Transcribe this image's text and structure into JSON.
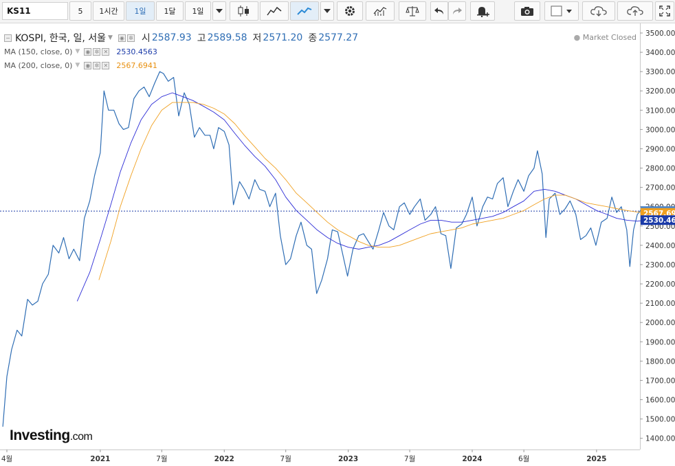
{
  "toolbar": {
    "symbol": "KS11",
    "interval_value": "5",
    "interval_buttons": [
      "1시간",
      "1일",
      "1달",
      "1일"
    ],
    "active_interval": "1일"
  },
  "legend": {
    "title": "KOSPI, 한국, 일, 서울",
    "open_label": "시",
    "open": "2587.93",
    "high_label": "고",
    "high": "2589.58",
    "low_label": "저",
    "low": "2571.20",
    "close_label": "종",
    "close": "2577.27",
    "ma150_label": "MA (150, close, 0)",
    "ma150_value": "2530.4563",
    "ma200_label": "MA (200, close, 0)",
    "ma200_value": "2567.6941"
  },
  "market_status": "Market Closed",
  "logo": {
    "main": "Investing",
    "suffix": ".com"
  },
  "colors": {
    "price": "#2e6db4",
    "ma150": "#2b2bd6",
    "ma200": "#f0a020",
    "label_price": "#4f87c9",
    "label_ma200": "#f0a020",
    "label_ma150": "#1a3aa8",
    "toolbar_bg": "#f4f4f4"
  },
  "icons": [
    "candlestick-icon",
    "area-chart-icon",
    "line-chart-icon",
    "gear-icon",
    "indicators-icon",
    "compare-icon",
    "undo-icon",
    "redo-icon",
    "alert-icon",
    "camera-icon",
    "layout-icon",
    "cloud-download-icon",
    "cloud-upload-icon",
    "fullscreen-icon"
  ],
  "chart_data": {
    "type": "line",
    "title": "KOSPI, 한국, 일, 서울",
    "xlabel": "",
    "ylabel": "",
    "ylim": [
      1350,
      3550
    ],
    "yticks": [
      "3500.00",
      "3400.00",
      "3300.00",
      "3200.00",
      "3100.00",
      "3000.00",
      "2900.00",
      "2800.00",
      "2700.00",
      "2600.00",
      "2500.00",
      "2400.00",
      "2300.00",
      "2200.00",
      "2100.00",
      "2000.00",
      "1900.00",
      "1800.00",
      "1700.00",
      "1600.00",
      "1500.00",
      "1400.00"
    ],
    "xticks": [
      {
        "label": "4월",
        "date": "2020-04"
      },
      {
        "label": "2021",
        "date": "2021-01"
      },
      {
        "label": "7월",
        "date": "2021-07"
      },
      {
        "label": "2022",
        "date": "2022-01"
      },
      {
        "label": "7월",
        "date": "2022-07"
      },
      {
        "label": "2023",
        "date": "2023-01"
      },
      {
        "label": "7월",
        "date": "2023-07"
      },
      {
        "label": "2024",
        "date": "2024-01"
      },
      {
        "label": "6월",
        "date": "2024-06"
      },
      {
        "label": "2025",
        "date": "2025-01"
      }
    ],
    "last_labels": {
      "price": "2577.27",
      "ma200": "2567.69",
      "ma150": "2530.46"
    },
    "series": [
      {
        "name": "KOSPI",
        "values": [
          [
            "2020-03-20",
            1460
          ],
          [
            "2020-04-01",
            1720
          ],
          [
            "2020-04-15",
            1860
          ],
          [
            "2020-05-01",
            1960
          ],
          [
            "2020-05-15",
            1930
          ],
          [
            "2020-06-01",
            2120
          ],
          [
            "2020-06-15",
            2090
          ],
          [
            "2020-07-01",
            2110
          ],
          [
            "2020-07-15",
            2200
          ],
          [
            "2020-08-01",
            2250
          ],
          [
            "2020-08-15",
            2400
          ],
          [
            "2020-09-01",
            2360
          ],
          [
            "2020-09-15",
            2440
          ],
          [
            "2020-10-01",
            2330
          ],
          [
            "2020-10-15",
            2380
          ],
          [
            "2020-11-01",
            2320
          ],
          [
            "2020-11-15",
            2540
          ],
          [
            "2020-12-01",
            2630
          ],
          [
            "2020-12-15",
            2760
          ],
          [
            "2021-01-01",
            2880
          ],
          [
            "2021-01-12",
            3200
          ],
          [
            "2021-01-25",
            3100
          ],
          [
            "2021-02-10",
            3100
          ],
          [
            "2021-02-25",
            3030
          ],
          [
            "2021-03-10",
            3000
          ],
          [
            "2021-03-25",
            3010
          ],
          [
            "2021-04-10",
            3160
          ],
          [
            "2021-04-25",
            3200
          ],
          [
            "2021-05-10",
            3220
          ],
          [
            "2021-05-25",
            3170
          ],
          [
            "2021-06-10",
            3240
          ],
          [
            "2021-06-25",
            3300
          ],
          [
            "2021-07-06",
            3290
          ],
          [
            "2021-07-20",
            3250
          ],
          [
            "2021-08-05",
            3270
          ],
          [
            "2021-08-20",
            3070
          ],
          [
            "2021-09-05",
            3190
          ],
          [
            "2021-09-20",
            3130
          ],
          [
            "2021-10-05",
            2960
          ],
          [
            "2021-10-20",
            3010
          ],
          [
            "2021-11-05",
            2970
          ],
          [
            "2021-11-20",
            2970
          ],
          [
            "2021-12-01",
            2900
          ],
          [
            "2021-12-15",
            3010
          ],
          [
            "2022-01-01",
            2990
          ],
          [
            "2022-01-15",
            2920
          ],
          [
            "2022-01-28",
            2610
          ],
          [
            "2022-02-15",
            2730
          ],
          [
            "2022-03-01",
            2690
          ],
          [
            "2022-03-15",
            2640
          ],
          [
            "2022-04-01",
            2740
          ],
          [
            "2022-04-15",
            2690
          ],
          [
            "2022-05-01",
            2680
          ],
          [
            "2022-05-15",
            2600
          ],
          [
            "2022-06-01",
            2670
          ],
          [
            "2022-06-15",
            2450
          ],
          [
            "2022-07-01",
            2300
          ],
          [
            "2022-07-15",
            2330
          ],
          [
            "2022-08-01",
            2450
          ],
          [
            "2022-08-15",
            2520
          ],
          [
            "2022-09-01",
            2400
          ],
          [
            "2022-09-15",
            2380
          ],
          [
            "2022-09-30",
            2150
          ],
          [
            "2022-10-15",
            2220
          ],
          [
            "2022-11-01",
            2330
          ],
          [
            "2022-11-15",
            2480
          ],
          [
            "2022-12-01",
            2470
          ],
          [
            "2022-12-15",
            2360
          ],
          [
            "2022-12-30",
            2240
          ],
          [
            "2023-01-15",
            2380
          ],
          [
            "2023-02-01",
            2450
          ],
          [
            "2023-02-15",
            2460
          ],
          [
            "2023-03-01",
            2420
          ],
          [
            "2023-03-15",
            2380
          ],
          [
            "2023-04-01",
            2480
          ],
          [
            "2023-04-15",
            2570
          ],
          [
            "2023-05-01",
            2500
          ],
          [
            "2023-05-15",
            2480
          ],
          [
            "2023-06-01",
            2600
          ],
          [
            "2023-06-15",
            2620
          ],
          [
            "2023-07-01",
            2560
          ],
          [
            "2023-07-15",
            2600
          ],
          [
            "2023-08-01",
            2640
          ],
          [
            "2023-08-15",
            2530
          ],
          [
            "2023-09-01",
            2560
          ],
          [
            "2023-09-15",
            2600
          ],
          [
            "2023-10-01",
            2460
          ],
          [
            "2023-10-15",
            2450
          ],
          [
            "2023-10-30",
            2280
          ],
          [
            "2023-11-15",
            2490
          ],
          [
            "2023-12-01",
            2510
          ],
          [
            "2023-12-15",
            2560
          ],
          [
            "2024-01-01",
            2650
          ],
          [
            "2024-01-15",
            2500
          ],
          [
            "2024-02-01",
            2600
          ],
          [
            "2024-02-15",
            2650
          ],
          [
            "2024-03-01",
            2640
          ],
          [
            "2024-03-15",
            2720
          ],
          [
            "2024-04-01",
            2750
          ],
          [
            "2024-04-15",
            2600
          ],
          [
            "2024-05-01",
            2680
          ],
          [
            "2024-05-15",
            2740
          ],
          [
            "2024-06-01",
            2680
          ],
          [
            "2024-06-15",
            2760
          ],
          [
            "2024-07-01",
            2800
          ],
          [
            "2024-07-11",
            2890
          ],
          [
            "2024-07-25",
            2770
          ],
          [
            "2024-08-05",
            2440
          ],
          [
            "2024-08-15",
            2640
          ],
          [
            "2024-09-01",
            2670
          ],
          [
            "2024-09-15",
            2560
          ],
          [
            "2024-10-01",
            2590
          ],
          [
            "2024-10-15",
            2630
          ],
          [
            "2024-11-01",
            2560
          ],
          [
            "2024-11-15",
            2430
          ],
          [
            "2024-12-01",
            2450
          ],
          [
            "2024-12-15",
            2490
          ],
          [
            "2024-12-30",
            2400
          ],
          [
            "2025-01-15",
            2520
          ],
          [
            "2025-02-01",
            2540
          ],
          [
            "2025-02-15",
            2650
          ],
          [
            "2025-03-01",
            2570
          ],
          [
            "2025-03-15",
            2600
          ],
          [
            "2025-03-31",
            2480
          ],
          [
            "2025-04-09",
            2290
          ],
          [
            "2025-04-20",
            2480
          ],
          [
            "2025-05-01",
            2560
          ],
          [
            "2025-05-15",
            2590
          ],
          [
            "2025-05-28",
            2577.27
          ]
        ]
      },
      {
        "name": "MA (150, close, 0)",
        "values": [
          [
            "2020-10-25",
            2110
          ],
          [
            "2020-12-01",
            2260
          ],
          [
            "2021-01-01",
            2430
          ],
          [
            "2021-02-01",
            2610
          ],
          [
            "2021-03-01",
            2780
          ],
          [
            "2021-04-01",
            2930
          ],
          [
            "2021-05-01",
            3050
          ],
          [
            "2021-06-01",
            3130
          ],
          [
            "2021-07-01",
            3170
          ],
          [
            "2021-08-01",
            3190
          ],
          [
            "2021-09-01",
            3170
          ],
          [
            "2021-10-01",
            3150
          ],
          [
            "2021-11-01",
            3120
          ],
          [
            "2021-12-01",
            3090
          ],
          [
            "2022-01-01",
            3050
          ],
          [
            "2022-02-01",
            2980
          ],
          [
            "2022-03-01",
            2920
          ],
          [
            "2022-04-01",
            2860
          ],
          [
            "2022-05-01",
            2810
          ],
          [
            "2022-06-01",
            2740
          ],
          [
            "2022-07-01",
            2650
          ],
          [
            "2022-08-01",
            2580
          ],
          [
            "2022-09-01",
            2530
          ],
          [
            "2022-10-01",
            2480
          ],
          [
            "2022-11-01",
            2440
          ],
          [
            "2022-12-01",
            2410
          ],
          [
            "2023-01-01",
            2390
          ],
          [
            "2023-02-01",
            2380
          ],
          [
            "2023-03-01",
            2390
          ],
          [
            "2023-04-01",
            2400
          ],
          [
            "2023-05-01",
            2420
          ],
          [
            "2023-06-01",
            2450
          ],
          [
            "2023-07-01",
            2480
          ],
          [
            "2023-08-01",
            2510
          ],
          [
            "2023-09-01",
            2530
          ],
          [
            "2023-10-01",
            2530
          ],
          [
            "2023-11-01",
            2520
          ],
          [
            "2023-12-01",
            2520
          ],
          [
            "2024-01-01",
            2530
          ],
          [
            "2024-02-01",
            2540
          ],
          [
            "2024-03-01",
            2550
          ],
          [
            "2024-04-01",
            2570
          ],
          [
            "2024-05-01",
            2600
          ],
          [
            "2024-06-01",
            2630
          ],
          [
            "2024-07-01",
            2680
          ],
          [
            "2024-08-01",
            2690
          ],
          [
            "2024-09-01",
            2680
          ],
          [
            "2024-10-01",
            2660
          ],
          [
            "2024-11-01",
            2640
          ],
          [
            "2024-12-01",
            2610
          ],
          [
            "2025-01-01",
            2580
          ],
          [
            "2025-02-01",
            2560
          ],
          [
            "2025-03-01",
            2540
          ],
          [
            "2025-04-01",
            2530
          ],
          [
            "2025-05-01",
            2525
          ],
          [
            "2025-05-28",
            2530.46
          ]
        ]
      },
      {
        "name": "MA (200, close, 0)",
        "values": [
          [
            "2020-12-28",
            2220
          ],
          [
            "2021-02-01",
            2420
          ],
          [
            "2021-03-01",
            2600
          ],
          [
            "2021-04-01",
            2760
          ],
          [
            "2021-05-01",
            2900
          ],
          [
            "2021-06-01",
            3020
          ],
          [
            "2021-07-01",
            3100
          ],
          [
            "2021-08-01",
            3140
          ],
          [
            "2021-09-01",
            3140
          ],
          [
            "2021-10-01",
            3140
          ],
          [
            "2021-11-01",
            3130
          ],
          [
            "2021-12-01",
            3110
          ],
          [
            "2022-01-01",
            3080
          ],
          [
            "2022-02-01",
            3030
          ],
          [
            "2022-03-01",
            2970
          ],
          [
            "2022-04-01",
            2910
          ],
          [
            "2022-05-01",
            2850
          ],
          [
            "2022-06-01",
            2800
          ],
          [
            "2022-07-01",
            2740
          ],
          [
            "2022-08-01",
            2670
          ],
          [
            "2022-09-01",
            2620
          ],
          [
            "2022-10-01",
            2570
          ],
          [
            "2022-11-01",
            2520
          ],
          [
            "2022-12-01",
            2480
          ],
          [
            "2023-01-01",
            2450
          ],
          [
            "2023-02-01",
            2420
          ],
          [
            "2023-03-01",
            2400
          ],
          [
            "2023-04-01",
            2390
          ],
          [
            "2023-05-01",
            2390
          ],
          [
            "2023-06-01",
            2400
          ],
          [
            "2023-07-01",
            2420
          ],
          [
            "2023-08-01",
            2440
          ],
          [
            "2023-09-01",
            2460
          ],
          [
            "2023-10-01",
            2470
          ],
          [
            "2023-11-01",
            2480
          ],
          [
            "2023-12-01",
            2490
          ],
          [
            "2024-01-01",
            2510
          ],
          [
            "2024-02-01",
            2520
          ],
          [
            "2024-03-01",
            2530
          ],
          [
            "2024-04-01",
            2540
          ],
          [
            "2024-05-01",
            2560
          ],
          [
            "2024-06-01",
            2580
          ],
          [
            "2024-07-01",
            2610
          ],
          [
            "2024-08-01",
            2640
          ],
          [
            "2024-09-01",
            2660
          ],
          [
            "2024-10-01",
            2660
          ],
          [
            "2024-11-01",
            2640
          ],
          [
            "2024-12-01",
            2620
          ],
          [
            "2025-01-01",
            2610
          ],
          [
            "2025-02-01",
            2600
          ],
          [
            "2025-03-01",
            2590
          ],
          [
            "2025-04-01",
            2580
          ],
          [
            "2025-05-01",
            2572
          ],
          [
            "2025-05-28",
            2567.69
          ]
        ]
      }
    ]
  }
}
